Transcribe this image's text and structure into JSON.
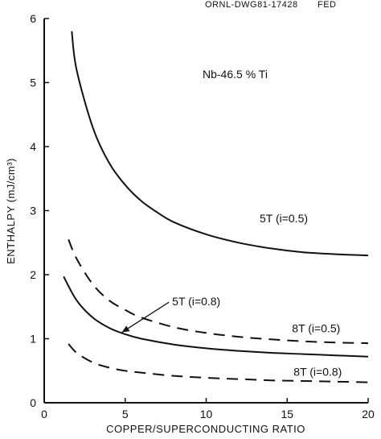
{
  "header": {
    "drawing_number": "ORNL-DWG81-17428",
    "code": "FED"
  },
  "chart_data": {
    "type": "line",
    "title": "",
    "xlabel": "COPPER/SUPERCONDUCTING RATIO",
    "ylabel": "ENTHALPY (mJ/cm³)",
    "xlim": [
      0,
      20
    ],
    "ylim": [
      0,
      6
    ],
    "xticks": [
      0,
      5,
      10,
      15,
      20
    ],
    "yticks": [
      0,
      1,
      2,
      3,
      4,
      5,
      6
    ],
    "grid": false,
    "legend": "none",
    "annotation": "Nb-46.5 % Ti",
    "series": [
      {
        "name": "5T (i=0.5)",
        "style": "solid",
        "x": [
          1.7,
          2,
          3,
          4,
          5,
          6,
          7,
          8,
          10,
          12,
          14,
          16,
          18,
          20
        ],
        "y": [
          5.8,
          5.2,
          4.3,
          3.75,
          3.4,
          3.15,
          2.97,
          2.82,
          2.63,
          2.5,
          2.41,
          2.35,
          2.32,
          2.3
        ]
      },
      {
        "name": "8T (i=0.5)",
        "style": "dashed",
        "x": [
          1.5,
          2,
          3,
          4,
          5,
          6,
          8,
          10,
          12,
          14,
          16,
          18,
          20
        ],
        "y": [
          2.55,
          2.25,
          1.85,
          1.6,
          1.45,
          1.33,
          1.18,
          1.09,
          1.03,
          0.99,
          0.96,
          0.94,
          0.93
        ]
      },
      {
        "name": "5T (i=0.8)",
        "style": "solid",
        "x": [
          1.2,
          2,
          3,
          4,
          5,
          6,
          8,
          10,
          12,
          14,
          16,
          18,
          20
        ],
        "y": [
          1.97,
          1.6,
          1.33,
          1.17,
          1.07,
          1.0,
          0.91,
          0.85,
          0.81,
          0.78,
          0.76,
          0.74,
          0.72
        ]
      },
      {
        "name": "8T (i=0.8)",
        "style": "dashed",
        "x": [
          1.5,
          2,
          3,
          4,
          5,
          6,
          8,
          10,
          12,
          14,
          16,
          18,
          20
        ],
        "y": [
          0.92,
          0.78,
          0.63,
          0.55,
          0.5,
          0.47,
          0.42,
          0.39,
          0.37,
          0.35,
          0.34,
          0.33,
          0.32
        ]
      }
    ],
    "labels": [
      {
        "text": "5T (i=0.5)",
        "x": 13.3,
        "y": 2.82,
        "series": 0
      },
      {
        "text": "8T (i=0.5)",
        "x": 15.3,
        "y": 1.1,
        "series": 1
      },
      {
        "text": "5T (i=0.8)",
        "x": 7.9,
        "y": 1.52,
        "series": 2,
        "arrow_to": [
          4.8,
          1.1
        ]
      },
      {
        "text": "8T (i=0.8)",
        "x": 15.4,
        "y": 0.42,
        "series": 3
      }
    ]
  }
}
